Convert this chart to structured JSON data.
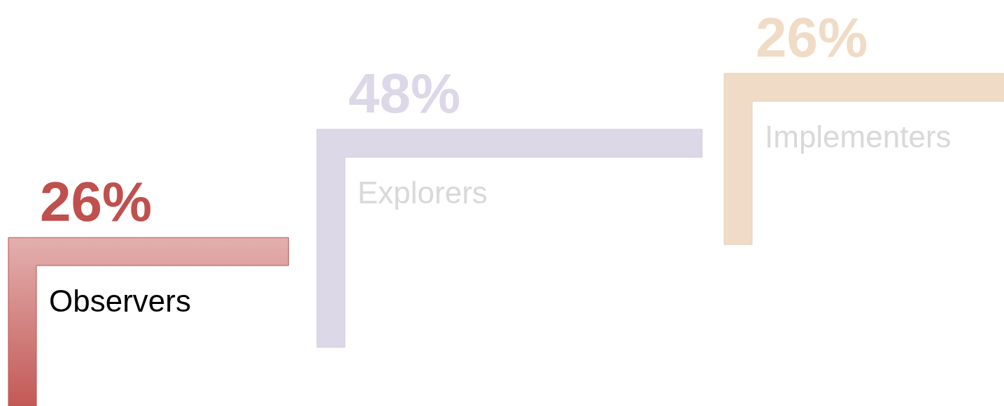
{
  "chart_data": {
    "type": "other",
    "categories": [
      "Observers",
      "Explorers",
      "Implementers"
    ],
    "values": [
      26,
      48,
      26
    ],
    "colors": [
      "#c0504d",
      "#dcd8e8",
      "#f0dcc6"
    ],
    "value_labels": [
      "26%",
      "48%",
      "26%"
    ]
  }
}
